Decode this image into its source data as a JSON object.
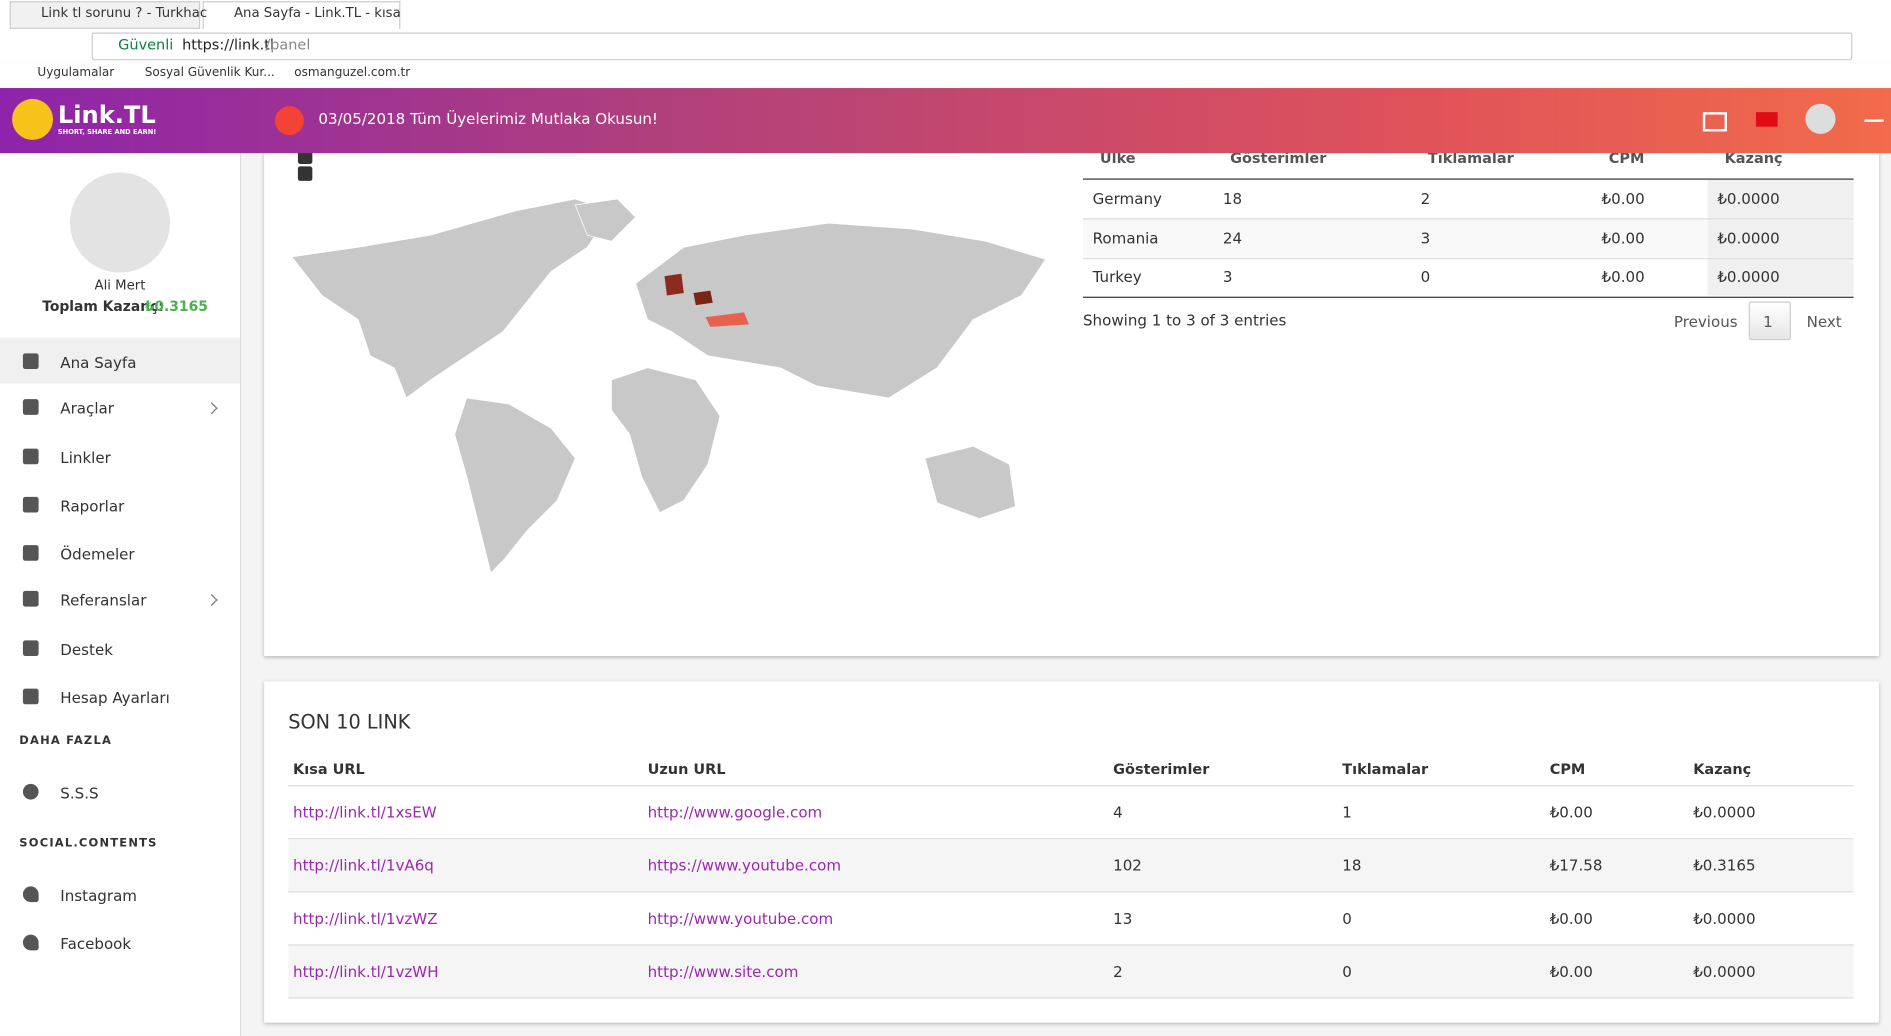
{
  "browser": {
    "tabs": [
      "Link tl sorunu ? - Turkhac",
      "Ana Sayfa - Link.TL - kısa"
    ],
    "secure": "Güvenli",
    "url_host": "https://link.tl",
    "url_path": "/panel",
    "bookmarks": [
      "Uygulamalar",
      "Sosyal Güvenlik Kur...",
      "osmanguzel.com.tr"
    ]
  },
  "header": {
    "logo": "Link.TL",
    "tagline": "short, share and earn!",
    "announcement": "03/05/2018 Tüm Üyelerimiz Mutlaka Okusun!"
  },
  "sidebar": {
    "user_name": "Ali Mert",
    "earnings_label": "Toplam Kazanç:",
    "earnings_value": "₺0.3165",
    "menu": [
      "Ana Sayfa",
      "Araçlar",
      "Linkler",
      "Raporlar",
      "Ödemeler",
      "Referanslar",
      "Destek",
      "Hesap Ayarları"
    ],
    "section_more": "DAHA FAZLA",
    "more": [
      "S.S.S"
    ],
    "section_social": "SOCIAL.CONTENTS",
    "social": [
      "Instagram",
      "Facebook"
    ]
  },
  "country_table": {
    "headers": [
      "Ülke",
      "Gösterimler",
      "Tıklamalar",
      "CPM",
      "Kazanç"
    ],
    "rows": [
      [
        "Germany",
        "18",
        "2",
        "₺0.00",
        "₺0.0000"
      ],
      [
        "Romania",
        "24",
        "3",
        "₺0.00",
        "₺0.0000"
      ],
      [
        "Turkey",
        "3",
        "0",
        "₺0.00",
        "₺0.0000"
      ]
    ],
    "info": "Showing 1 to 3 of 3 entries",
    "pagination": [
      "Previous",
      "1",
      "Next"
    ]
  },
  "links_table": {
    "title": "SON 10 LINK",
    "headers": [
      "Kısa URL",
      "Uzun URL",
      "Gösterimler",
      "Tıklamalar",
      "CPM",
      "Kazanç"
    ],
    "rows": [
      [
        "http://link.tl/1xsEW",
        "http://www.google.com",
        "4",
        "1",
        "₺0.00",
        "₺0.0000"
      ],
      [
        "http://link.tl/1vA6q",
        "https://www.youtube.com",
        "102",
        "18",
        "₺17.58",
        "₺0.3165"
      ],
      [
        "http://link.tl/1vzWZ",
        "http://www.youtube.com",
        "13",
        "0",
        "₺0.00",
        "₺0.0000"
      ],
      [
        "http://link.tl/1vzWH",
        "http://www.site.com",
        "2",
        "0",
        "₺0.00",
        "₺0.0000"
      ]
    ]
  }
}
